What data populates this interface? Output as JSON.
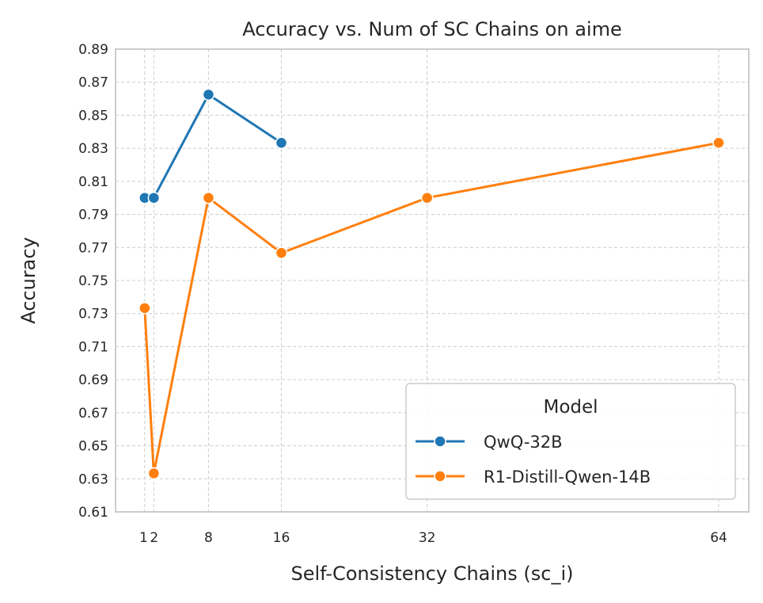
{
  "chart_data": {
    "type": "line",
    "title": "Accuracy vs. Num of SC Chains on aime",
    "xlabel": "Self-Consistency Chains (sc_i)",
    "ylabel": "Accuracy",
    "xlim": [
      -2.2,
      67.3
    ],
    "ylim": [
      0.61,
      0.89
    ],
    "x_ticks": [
      1,
      2,
      8,
      16,
      32,
      64
    ],
    "x_tick_labels": [
      "1",
      "2",
      "8",
      "16",
      "32",
      "64"
    ],
    "y_ticks": [
      0.61,
      0.63,
      0.65,
      0.67,
      0.69,
      0.71,
      0.73,
      0.75,
      0.77,
      0.79,
      0.81,
      0.83,
      0.85,
      0.87,
      0.89
    ],
    "y_tick_labels": [
      "0.61",
      "0.63",
      "0.65",
      "0.67",
      "0.69",
      "0.71",
      "0.73",
      "0.75",
      "0.77",
      "0.79",
      "0.81",
      "0.83",
      "0.85",
      "0.87",
      "0.89"
    ],
    "grid": true,
    "legend": {
      "title": "Model",
      "placement": "lower right"
    },
    "series": [
      {
        "name": "QwQ-32B",
        "color": "#1f77b4",
        "x": [
          1,
          2,
          8,
          16
        ],
        "y": [
          0.8,
          0.8,
          0.8625,
          0.8333
        ]
      },
      {
        "name": "R1-Distill-Qwen-14B",
        "color": "#ff7f0e",
        "x": [
          1,
          2,
          8,
          16,
          32,
          64
        ],
        "y": [
          0.7333,
          0.6333,
          0.8,
          0.7667,
          0.8,
          0.8333
        ]
      }
    ]
  }
}
